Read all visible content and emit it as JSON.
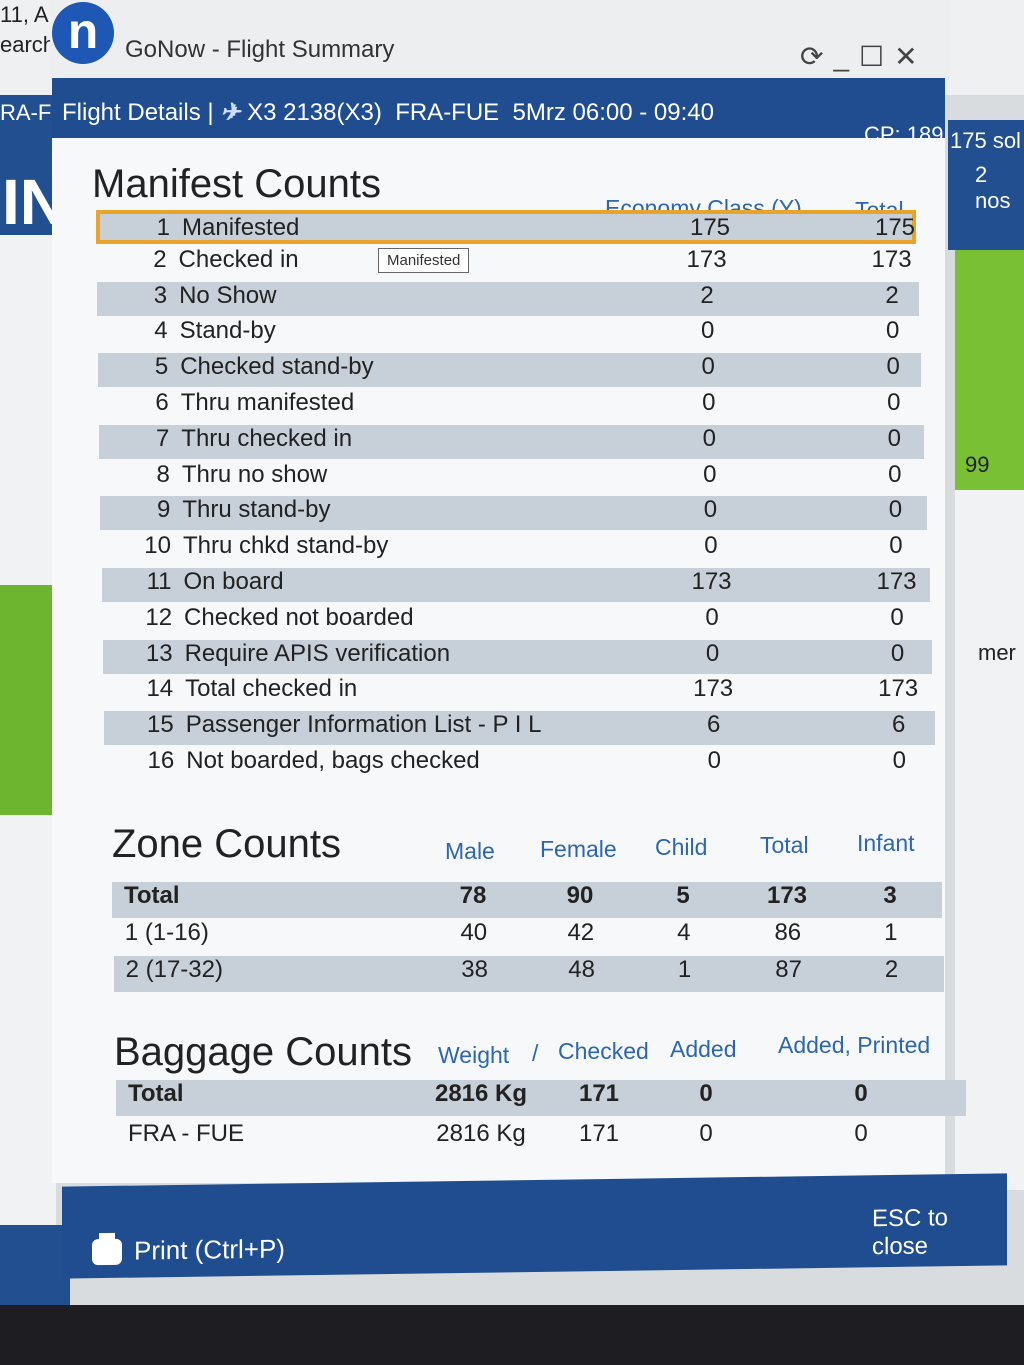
{
  "background": {
    "top_left_lines": [
      "11, A",
      "earch"
    ],
    "left_code": "RA-F",
    "left_big": "IN",
    "right_sold": "175 sol",
    "right_nos": "2 nos",
    "right_99": "99",
    "right_mer": "mer"
  },
  "window": {
    "logo_letter": "n",
    "title": "GoNow - Flight Summary",
    "refresh_icon": "refresh-icon",
    "minimize_icon": "minimize-icon",
    "maximize_icon": "maximize-icon",
    "close_icon": "close-icon"
  },
  "header": {
    "label": "Flight Details |",
    "airline_icon": "airline-logo-icon",
    "flight": "X3 2138(X3)",
    "route": "FRA-FUE",
    "schedule": "5Mrz 06:00 - 09:40",
    "cp": "CP: 189"
  },
  "manifest": {
    "title": "Manifest Counts",
    "columns": [
      "Economy Class (Y)",
      "Total"
    ],
    "tooltip": "Manifested",
    "rows": [
      {
        "n": "1",
        "label": "Manifested",
        "y": "175",
        "total": "175"
      },
      {
        "n": "2",
        "label": "Checked in",
        "y": "173",
        "total": "173"
      },
      {
        "n": "3",
        "label": "No Show",
        "y": "2",
        "total": "2"
      },
      {
        "n": "4",
        "label": "Stand-by",
        "y": "0",
        "total": "0"
      },
      {
        "n": "5",
        "label": "Checked stand-by",
        "y": "0",
        "total": "0"
      },
      {
        "n": "6",
        "label": "Thru manifested",
        "y": "0",
        "total": "0"
      },
      {
        "n": "7",
        "label": "Thru checked in",
        "y": "0",
        "total": "0"
      },
      {
        "n": "8",
        "label": "Thru no show",
        "y": "0",
        "total": "0"
      },
      {
        "n": "9",
        "label": "Thru stand-by",
        "y": "0",
        "total": "0"
      },
      {
        "n": "10",
        "label": "Thru chkd stand-by",
        "y": "0",
        "total": "0"
      },
      {
        "n": "11",
        "label": "On board",
        "y": "173",
        "total": "173"
      },
      {
        "n": "12",
        "label": "Checked not boarded",
        "y": "0",
        "total": "0"
      },
      {
        "n": "13",
        "label": "Require APIS verification",
        "y": "0",
        "total": "0"
      },
      {
        "n": "14",
        "label": "Total checked in",
        "y": "173",
        "total": "173"
      },
      {
        "n": "15",
        "label": "Passenger Information List - P I L",
        "y": "6",
        "total": "6"
      },
      {
        "n": "16",
        "label": "Not boarded, bags checked",
        "y": "0",
        "total": "0"
      }
    ]
  },
  "zones": {
    "title": "Zone Counts",
    "columns": [
      "Male",
      "Female",
      "Child",
      "Total",
      "Infant"
    ],
    "rows": [
      {
        "label": "Total",
        "male": "78",
        "female": "90",
        "child": "5",
        "total": "173",
        "infant": "3"
      },
      {
        "label": "1 (1-16)",
        "male": "40",
        "female": "42",
        "child": "4",
        "total": "86",
        "infant": "1"
      },
      {
        "label": "2 (17-32)",
        "male": "38",
        "female": "48",
        "child": "1",
        "total": "87",
        "infant": "2"
      }
    ]
  },
  "baggage": {
    "title": "Baggage Counts",
    "columns": [
      "Weight",
      "/",
      "Checked",
      "Added",
      "Added, Printed"
    ],
    "rows": [
      {
        "label": "Total",
        "weight": "2816 Kg",
        "checked": "171",
        "added": "0",
        "printed": "0"
      },
      {
        "label": "FRA - FUE",
        "weight": "2816 Kg",
        "checked": "171",
        "added": "0",
        "printed": "0"
      }
    ]
  },
  "footer": {
    "print_label": "Print (Ctrl+P)",
    "print_icon": "printer-icon",
    "esc_label": "ESC to close"
  }
}
